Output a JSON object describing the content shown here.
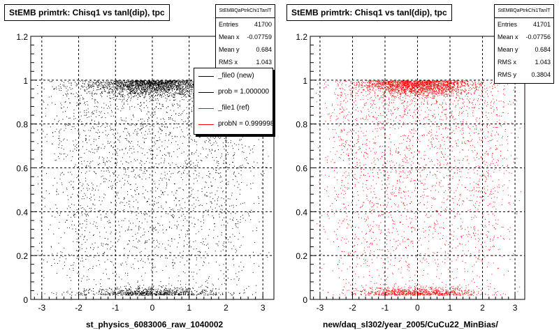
{
  "chart_data": [
    {
      "type": "scatter",
      "title": "StEMB primtrk: Chisq1 vs tanl(dip), tpc",
      "xlabel": "st_physics_6083006_raw_1040002",
      "ylabel": "",
      "xlim": [
        -3.3,
        3.3
      ],
      "ylim": [
        0,
        1.2
      ],
      "x_ticks": [
        "-3",
        "-2",
        "-1",
        "0",
        "1",
        "2",
        "3"
      ],
      "y_ticks": [
        "0",
        "0.2",
        "0.4",
        "0.6",
        "0.8",
        "1",
        "1.2"
      ],
      "grid": true,
      "marker_color": "#000000",
      "stats": {
        "name": "StEMBQaPtrkChi1TanlT",
        "rows": [
          {
            "key": "Entries",
            "value": "41700"
          },
          {
            "key": "Mean x",
            "value": "-0.07759"
          },
          {
            "key": "Mean y",
            "value": "0.684"
          },
          {
            "key": "RMS x",
            "value": "1.043"
          }
        ]
      },
      "legend": {
        "placement": "top-right",
        "entries": [
          {
            "label": "_file0 (new)",
            "color": "#000000"
          },
          {
            "label": "prob = 1.000000",
            "color": "#000000"
          },
          {
            "label": "_file1 (ref)",
            "color": "#ff0000"
          },
          {
            "label": "probN = 0.999998",
            "color": "#ff0000"
          }
        ]
      }
    },
    {
      "type": "scatter",
      "title": "StEMB primtrk: Chisq1 vs tanl(dip), tpc",
      "xlabel": "new/daq_sl302/year_2005/CuCu22_MinBias/",
      "ylabel": "",
      "xlim": [
        -3.3,
        3.3
      ],
      "ylim": [
        0,
        1.2
      ],
      "x_ticks": [
        "-3",
        "-2",
        "-1",
        "0",
        "1",
        "2",
        "3"
      ],
      "y_ticks": [
        "0",
        "0.2",
        "0.4",
        "0.6",
        "0.8",
        "1",
        "1.2"
      ],
      "grid": true,
      "marker_color": "#ff0000",
      "stats": {
        "name": "StEMBQaPtrkChi1TanlT",
        "rows": [
          {
            "key": "Entries",
            "value": "41701"
          },
          {
            "key": "Mean x",
            "value": "-0.07756"
          },
          {
            "key": "Mean y",
            "value": "0.684"
          },
          {
            "key": "RMS x",
            "value": "1.043"
          },
          {
            "key": "RMS y",
            "value": "0.3804"
          }
        ]
      }
    }
  ]
}
